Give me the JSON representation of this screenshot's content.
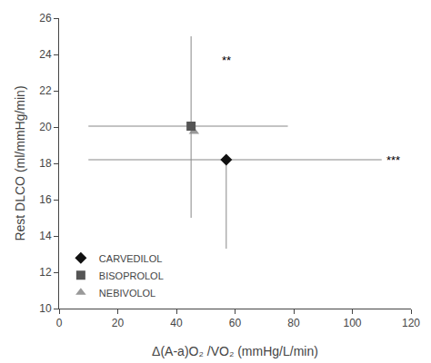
{
  "chart_data": {
    "type": "scatter",
    "xlabel": "Δ(A-a)O₂ /VO₂ (mmHg/L/min)",
    "ylabel": "Rest DLCO (ml/mmHg/min)",
    "xlim": [
      0,
      120
    ],
    "ylim": [
      10,
      26
    ],
    "xticks": [
      0,
      20,
      40,
      60,
      80,
      100,
      120
    ],
    "yticks": [
      10,
      12,
      14,
      16,
      18,
      20,
      22,
      24,
      26
    ],
    "grid": false,
    "legend": "lower left",
    "series": [
      {
        "name": "CARVEDILOL",
        "color": "#111111",
        "marker": "diamond",
        "x": [
          57
        ],
        "y": [
          18.2
        ],
        "x_error": {
          "minus": [
            47
          ],
          "plus": [
            53
          ],
          "color": "#888888"
        },
        "y_error": {
          "minus": [
            4.9
          ],
          "plus": [
            0
          ],
          "color": "#888888"
        }
      },
      {
        "name": "BISOPROLOL",
        "color": "#555555",
        "marker": "square",
        "x": [
          45
        ],
        "y": [
          20.05
        ],
        "x_error": {
          "minus": [
            35
          ],
          "plus": [
            33
          ],
          "color": "#888888"
        },
        "y_error": {
          "minus": [
            5.05
          ],
          "plus": [
            4.95
          ],
          "color": "#888888"
        }
      },
      {
        "name": "NEBIVOLOL",
        "color": "#999999",
        "marker": "triangle",
        "x": [
          46
        ],
        "y": [
          19.75
        ]
      }
    ],
    "annotations": [
      {
        "text": "**",
        "x": 57,
        "y": 23.2
      },
      {
        "text": "***",
        "x": 111,
        "y": 18.2
      }
    ]
  }
}
